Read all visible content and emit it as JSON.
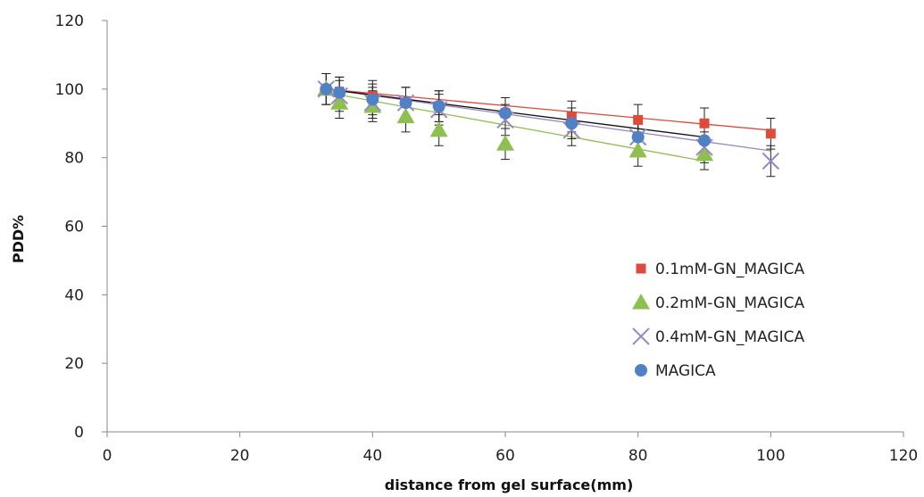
{
  "chart_data": {
    "type": "scatter",
    "title": "",
    "xlabel": "distance from gel surface(mm)",
    "ylabel": "PDD%",
    "xlim": [
      0,
      120
    ],
    "ylim": [
      0,
      120
    ],
    "xticks": [
      0,
      20,
      40,
      60,
      80,
      100,
      120
    ],
    "yticks": [
      0,
      20,
      40,
      60,
      80,
      100,
      120
    ],
    "grid": false,
    "legend_position": "right",
    "error_bar": 4.5,
    "series": [
      {
        "name": "0.1mM-GN_MAGICA",
        "color": "#e04a3a",
        "marker": "square",
        "x": [
          35,
          40,
          45,
          50,
          60,
          70,
          80,
          90,
          100
        ],
        "y": [
          99,
          98,
          96,
          95,
          93,
          92,
          91,
          90,
          87
        ],
        "trend": [
          [
            33,
            100
          ],
          [
            100,
            88
          ]
        ]
      },
      {
        "name": "0.2mM-GN_MAGICA",
        "color": "#8fbf4f",
        "marker": "triangle",
        "x": [
          33,
          35,
          40,
          45,
          50,
          60,
          80,
          90
        ],
        "y": [
          100,
          96,
          95,
          92,
          88,
          84,
          82,
          81
        ],
        "trend": [
          [
            33,
            99
          ],
          [
            90,
            79
          ]
        ]
      },
      {
        "name": "0.4mM-GN_MAGICA",
        "color": "#9b86c8",
        "marker": "x",
        "x": [
          33,
          35,
          40,
          45,
          50,
          60,
          70,
          80,
          90,
          100
        ],
        "y": [
          100,
          98,
          96,
          96,
          94,
          91,
          88,
          86,
          83,
          79
        ],
        "trend": [
          [
            33,
            100
          ],
          [
            100,
            82
          ]
        ]
      },
      {
        "name": "MAGICA",
        "color": "#4f81c4",
        "marker": "circle",
        "x": [
          33,
          35,
          40,
          45,
          50,
          60,
          70,
          80,
          90
        ],
        "y": [
          100,
          99,
          97,
          96,
          95,
          93,
          90,
          86,
          85
        ],
        "trend": [
          [
            33,
            100
          ],
          [
            90,
            86
          ]
        ],
        "trend_color": "#111111"
      }
    ]
  }
}
